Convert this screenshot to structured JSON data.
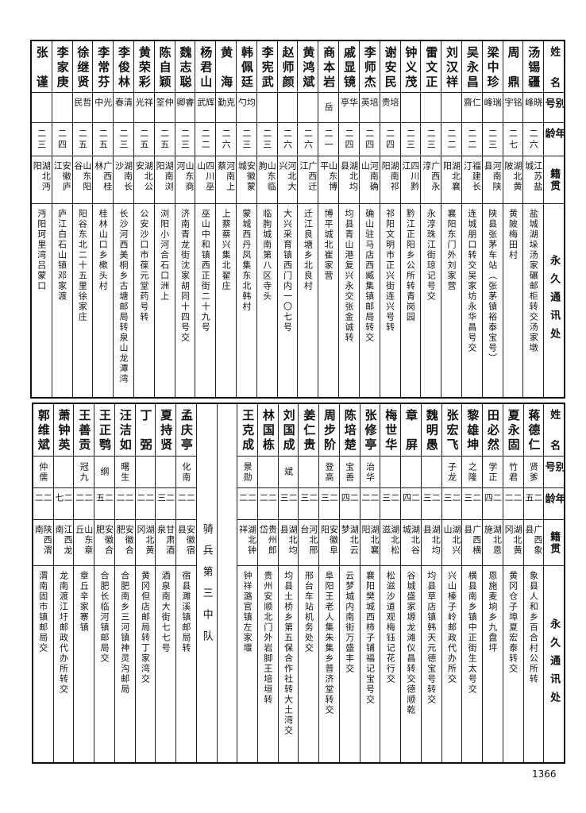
{
  "header": {
    "name": "姓名",
    "alias": "别号",
    "age": "年龄",
    "native": "籍贯",
    "address": "永久通讯处"
  },
  "top": {
    "rows": [
      {
        "name": "汤锡疆",
        "alias": "晓峰",
        "age": "二六",
        "native": "江苏盐城",
        "address": "盐城湖垛汤家碾邮柜转交汤家墩"
      },
      {
        "name": "周鼎",
        "alias": "铭宇",
        "age": "二七",
        "native": "湖北黄陂",
        "address": "黄陂梅田村"
      },
      {
        "name": "梁中珍",
        "alias": "瑞峰",
        "age": "二三",
        "native": "河南陕县",
        "address": "陕县张茅车站（张茅镇裕泰宝号）"
      },
      {
        "name": "吴永昌",
        "alias": "仁齋",
        "age": "二二",
        "native": "福建长汀",
        "address": "连城朋口转交吴家坊永华昌号交"
      },
      {
        "name": "刘汉祥",
        "alias": "",
        "age": "二二",
        "native": "湖北襄阳",
        "address": "襄阳东门外刘家营"
      },
      {
        "name": "雷文正",
        "alias": "",
        "age": "二三",
        "native": "广西永淳",
        "address": "永淳珠江街琼记号交"
      },
      {
        "name": "钟义茂",
        "alias": "",
        "age": "二三",
        "native": "四川黔江",
        "address": "黔江正阳乡公所转青岗园"
      },
      {
        "name": "谢安民",
        "alias": "培贵",
        "age": "二四",
        "native": "湖南祁阳",
        "address": "祁阳文明市正兴街连兴号转"
      },
      {
        "name": "李师杰",
        "alias": "培英",
        "age": "二四",
        "native": "河南确山",
        "address": "确山驻马店西臧集镇邮局转交"
      },
      {
        "name": "戚显镜",
        "alias": "华亭",
        "age": "二四",
        "native": "湖北均县",
        "address": "均县青山港复兴永交张金诚转"
      },
      {
        "name": "商本岩",
        "alias": "岳",
        "age": "二一",
        "native": "山东博平",
        "address": "博平城北崔家营"
      },
      {
        "name": "黄鸿斌",
        "alias": "",
        "age": "二六",
        "native": "广西迁江",
        "address": "迁江良塘乡北良村"
      },
      {
        "name": "赵师颜",
        "alias": "",
        "age": "二六",
        "native": "河北大兴",
        "address": "大兴采育镇西门内一〇七号"
      },
      {
        "name": "李宪武",
        "alias": "",
        "age": "二三",
        "native": "山东临朐",
        "address": "临朐城南第八区寺头"
      },
      {
        "name": "韩佩廷",
        "alias": "均勺",
        "age": "二三",
        "native": "安徽蒙城",
        "address": "蒙城西丹凤集东北韩村"
      },
      {
        "name": "黄海",
        "alias": "克勤",
        "age": "二六",
        "native": "河南上蔡",
        "address": "上蔡蔡兴集北翟庄"
      },
      {
        "name": "杨君山",
        "alias": "辉武",
        "age": "二二",
        "native": "四川巫山",
        "address": "巫山中和镇西正街二十九号"
      },
      {
        "name": "魏志聪",
        "alias": "睿卿",
        "age": "二三",
        "native": "山东商河",
        "address": "济南青龙街沈家胡同十四号交"
      },
      {
        "name": "陈自颖",
        "alias": "仲筌",
        "age": "二五",
        "native": "湖南浏阳",
        "address": "浏阳小河合石口洲上"
      },
      {
        "name": "黄荣彩",
        "alias": "祥光",
        "age": "二五",
        "native": "湖北公安",
        "address": "公安沙口市葆元堂药号转"
      },
      {
        "name": "李俊林",
        "alias": "清春",
        "age": "二三",
        "native": "湖南长沙",
        "address": "长沙河西美桐乡古塘邮局转泉山龙潭湾"
      },
      {
        "name": "李常芬",
        "alias": "光中",
        "age": "二五",
        "native": "广西桂林",
        "address": "桂林山口乡樕头村"
      },
      {
        "name": "徐继贤",
        "alias": "哲民",
        "age": "二五",
        "native": "山东阳谷",
        "address": "阳谷东北二十五里徐家庄"
      },
      {
        "name": "李家庚",
        "alias": "",
        "age": "二四",
        "native": "安徽庐江",
        "address": "庐江白石山镇邓家渡"
      },
      {
        "name": "张谨",
        "alias": "",
        "age": "二三",
        "native": "湖北沔阳",
        "address": "沔阳珂里湾吕蒙口"
      }
    ]
  },
  "bottom": {
    "section_label": "骑兵第三中队",
    "rows_before": [
      {
        "name": "蒋德仁",
        "alias": "贤爹",
        "age": "二五",
        "native": "广西象县",
        "address": "象县人和乡百合村公所转"
      },
      {
        "name": "夏永固",
        "alias": "竹君",
        "age": "二二",
        "native": "湖北黄冈",
        "address": "黄冈仓子埠夏宏泰转交"
      },
      {
        "name": "田必然",
        "alias": "学正",
        "age": "二四",
        "native": "湖北恩施",
        "address": "恩施麦垧乡九盘坪"
      },
      {
        "name": "黎雄坤",
        "alias": "之隆",
        "age": "二三",
        "native": "广西横县",
        "address": "横县南乡镇中正街生太号交"
      },
      {
        "name": "张宏飞",
        "alias": "子龙",
        "age": "二三",
        "native": "湖北兴山",
        "address": "兴山榛子岭邮政代办所交"
      },
      {
        "name": "魏明愚",
        "alias": "",
        "age": "二三",
        "native": "湖北均县",
        "address": "均县草店镇韩天元德宝号转交"
      },
      {
        "name": "章屏",
        "alias": "",
        "age": "二四",
        "native": "湖北谷城",
        "address": "谷城盛家塬龙滩仪昌转交德顺乾"
      },
      {
        "name": "梅世华",
        "alias": "",
        "age": "二三",
        "native": "湖北松滋",
        "address": "松滋沙道观梅钰记花行交"
      },
      {
        "name": "张修亭",
        "alias": "治华",
        "age": "二二",
        "native": "湖北襄阳",
        "address": "襄阳樊城西柿子铺福记宝号交"
      },
      {
        "name": "陈培楚",
        "alias": "宝善",
        "age": "二四",
        "native": "湖北云梦",
        "address": "云梦城内南街万盛丰交"
      },
      {
        "name": "周步阶",
        "alias": "登高",
        "age": "二三",
        "native": "安徽阜阳",
        "address": "阜阳王老人集朱集乡普济堂转交"
      },
      {
        "name": "姜仁贵",
        "alias": "",
        "age": "二三",
        "native": "河北邢台",
        "address": "邢台车站机务处交"
      },
      {
        "name": "刘国成",
        "alias": "斌",
        "age": "二三",
        "native": "湖北均县",
        "address": "均县土桥乡第五保合作社转大土湾交"
      },
      {
        "name": "林国栋",
        "alias": "",
        "age": "二二",
        "native": "贵州郎岱",
        "address": "贵州安顺北门外岩脚王培垣转"
      },
      {
        "name": "王克成",
        "alias": "景勋",
        "age": "二二",
        "native": "湖北钟祥",
        "address": "钟祥潞官镇左家堰"
      }
    ],
    "rows_after": [
      {
        "name": "孟庆亭",
        "alias": "化南",
        "age": "二二",
        "native": "安徽宿县",
        "address": "宿县濉溪镇邮局转"
      },
      {
        "name": "夏持贤",
        "alias": "",
        "age": "二三",
        "native": "甘肃酒泉",
        "address": "酒泉南大街七七号"
      },
      {
        "name": "丁弼",
        "alias": "",
        "age": "二二",
        "native": "湖北黄冈",
        "address": "黄冈但店邮局转丁家湾交"
      },
      {
        "name": "汪洁如",
        "alias": "曙生",
        "age": "二二",
        "native": "安徽合肥",
        "address": "合肥南乡三河镇神灵沟邮局"
      },
      {
        "name": "王正鹗",
        "alias": "纲",
        "age": "二五",
        "native": "安徽合肥",
        "address": "合肥长临河镇邮局交"
      },
      {
        "name": "王善贡",
        "alias": "冠九",
        "age": "二二",
        "native": "山东章丘",
        "address": "章丘辛家寨镇"
      },
      {
        "name": "萧钟英",
        "alias": "",
        "age": "二七",
        "native": "江西龙南",
        "address": "龙南渡江圩邮政代办所转交"
      },
      {
        "name": "郭维斌",
        "alias": "仲儒",
        "age": "二二",
        "native": "陕西渭南",
        "address": "渭南固市镇邮局交"
      }
    ]
  },
  "page_number": "1366"
}
